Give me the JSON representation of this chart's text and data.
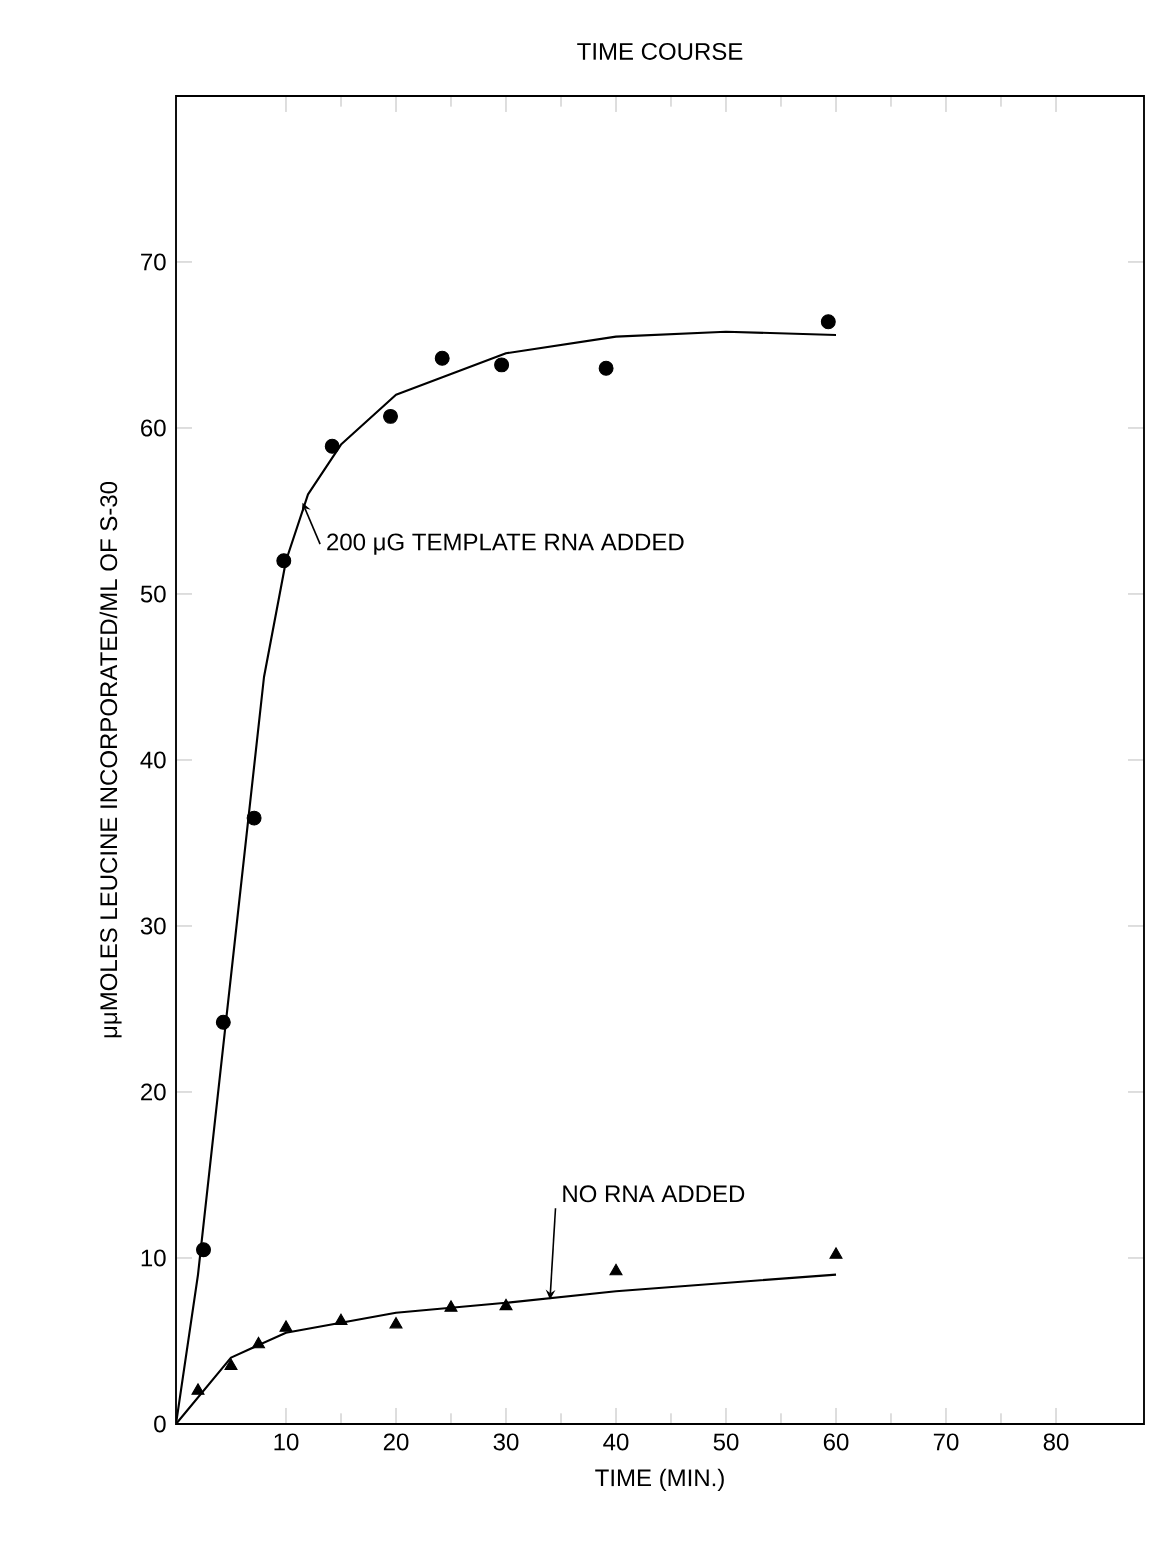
{
  "chart_data": {
    "type": "scatter",
    "title": "TIME COURSE",
    "xlabel": "TIME (MIN.)",
    "ylabel": "μμMOLES LEUCINE INCORPORATED/ML OF S-30",
    "xlim": [
      0,
      88
    ],
    "ylim": [
      0,
      80
    ],
    "xticks": [
      10,
      20,
      30,
      40,
      50,
      60,
      70,
      80
    ],
    "yticks": [
      0,
      10,
      20,
      30,
      40,
      50,
      60,
      70
    ],
    "grid": false,
    "series": [
      {
        "marker": "circle",
        "color": "#000000",
        "x": [
          2.5,
          4.3,
          7.1,
          9.8,
          14.2,
          19.5,
          24.2,
          29.6,
          39.1,
          59.3
        ],
        "values": [
          10.5,
          24.2,
          36.5,
          52,
          58.9,
          60.7,
          64.2,
          63.8,
          63.6,
          66.4
        ]
      },
      {
        "marker": "triangle",
        "color": "#000000",
        "x": [
          2,
          5,
          7.5,
          10,
          15,
          20,
          25,
          30,
          40,
          60
        ],
        "values": [
          2,
          3.5,
          4.8,
          5.8,
          6.2,
          6,
          7,
          7.1,
          9.2,
          10.2
        ]
      },
      {
        "type": "line",
        "marker": "none",
        "color": "#000000",
        "x": [
          0,
          2,
          5,
          8,
          10,
          12,
          15,
          20,
          30,
          40,
          50,
          60
        ],
        "values": [
          0,
          9,
          27,
          45,
          52,
          56,
          59,
          62,
          64.5,
          65.5,
          65.8,
          65.6
        ]
      },
      {
        "type": "line",
        "marker": "none",
        "color": "#000000",
        "x": [
          0,
          5,
          10,
          20,
          30,
          40,
          60
        ],
        "values": [
          0,
          4,
          5.5,
          6.7,
          7.3,
          8,
          9
        ]
      }
    ],
    "annotations": [
      {
        "text": "200 μG TEMPLATE RNA ADDED",
        "x": 11.5,
        "y": 55.5
      },
      {
        "text": "NO RNA ADDED",
        "x": 34,
        "y": 7.5
      }
    ]
  }
}
